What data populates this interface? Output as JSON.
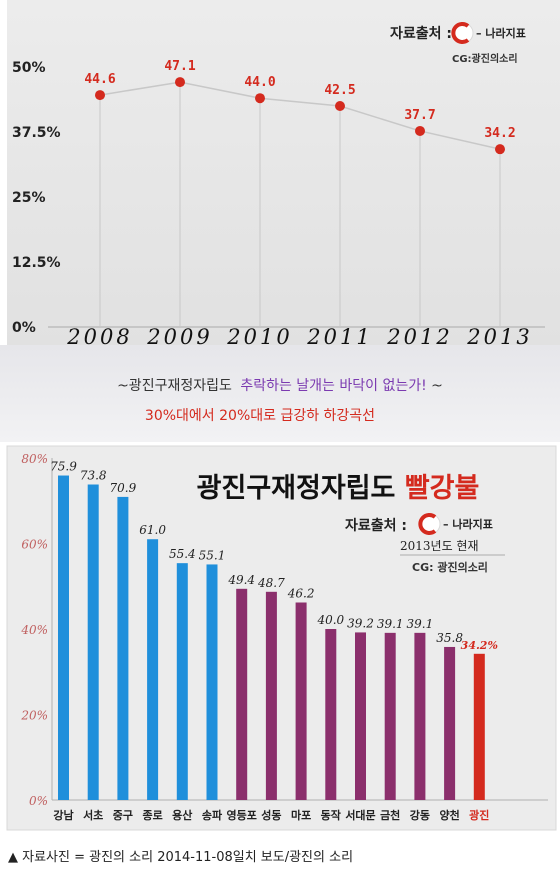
{
  "chart_data": [
    {
      "type": "line",
      "x": [
        "2008",
        "2009",
        "2010",
        "2011",
        "2012",
        "2013"
      ],
      "values": [
        44.6,
        47.1,
        44.0,
        42.5,
        37.7,
        34.2
      ],
      "value_labels": [
        "44.6",
        "47.1",
        "44.0",
        "42.5",
        "37.7",
        "34.2"
      ],
      "y_ticks": [
        "0%",
        "12.5%",
        "25%",
        "37.5%",
        "50%"
      ],
      "y_tick_values": [
        0,
        12.5,
        25,
        37.5,
        50
      ],
      "ylim": [
        0,
        50
      ],
      "source_label": "자료출처 :",
      "source_logo": "– 나라지표",
      "credit": "CG:광진의소리",
      "line_color": "#c8c8c8",
      "point_color": "#d42a1e",
      "label_color": "#d42a1e"
    },
    {
      "type": "bar",
      "title_main": "광진구재정자립도",
      "title_highlight": "빨강불",
      "categories": [
        "강남",
        "서초",
        "중구",
        "종로",
        "용산",
        "송파",
        "영등포",
        "성동",
        "마포",
        "동작",
        "서대문",
        "금천",
        "강동",
        "양천",
        "광진"
      ],
      "values": [
        75.9,
        73.8,
        70.9,
        61.0,
        55.4,
        55.1,
        49.4,
        48.7,
        46.2,
        40.0,
        39.2,
        39.1,
        39.1,
        35.8,
        34.2
      ],
      "value_labels": [
        "75.9",
        "73.8",
        "70.9",
        "61.0",
        "55.4",
        "55.1",
        "49.4",
        "48.7",
        "46.2",
        "40.0",
        "39.2",
        "39.1",
        "39.1",
        "35.8",
        "34.2%"
      ],
      "bar_colors": [
        "#1f8fdb",
        "#1f8fdb",
        "#1f8fdb",
        "#1f8fdb",
        "#1f8fdb",
        "#1f8fdb",
        "#8b2f6c",
        "#8b2f6c",
        "#8b2f6c",
        "#8b2f6c",
        "#8b2f6c",
        "#8b2f6c",
        "#8b2f6c",
        "#8b2f6c",
        "#d42a1e"
      ],
      "y_ticks": [
        "0%",
        "20%",
        "40%",
        "60%",
        "80%"
      ],
      "y_tick_values": [
        0,
        20,
        40,
        60,
        80
      ],
      "ylim": [
        0,
        80
      ],
      "source_label": "자료출처 :",
      "source_logo": "– 나라지표",
      "date_note": "2013년도 현재",
      "credit": "CG: 광진의소리"
    }
  ],
  "banner": {
    "line1_prefix": "~광진구재정자립도",
    "line1_highlight": "추락하는 날개는 바닥이 없는가!",
    "line1_suffix": "~",
    "line2": "30%대에서 20%대로 급강하 하강곡선"
  },
  "caption": "▲ 자료사진 = 광진의 소리 2014-11-08일치 보도/광진의 소리",
  "colors": {
    "accent_red": "#d42a1e",
    "purple": "#8b2f6c",
    "blue": "#1f8fdb",
    "banner_purple": "#7b3ab0"
  }
}
